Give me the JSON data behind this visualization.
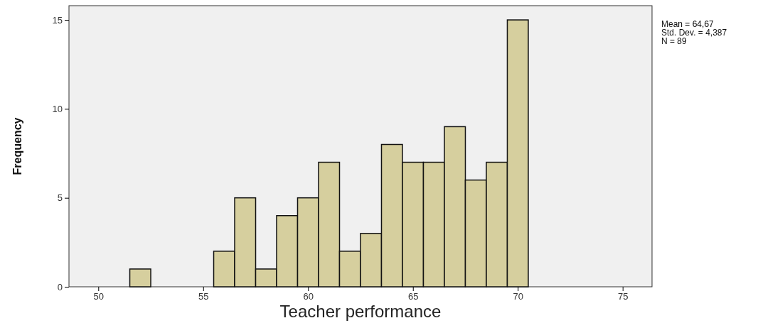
{
  "chart_data": {
    "type": "histogram",
    "xlabel": "Teacher performance",
    "ylabel": "Frequency",
    "bins": [
      51.5,
      52.5,
      53.5,
      54.5,
      55.5,
      56.5,
      57.5,
      58.5,
      59.5,
      60.5,
      61.5,
      62.5,
      63.5,
      64.5,
      65.5,
      66.5,
      67.5,
      68.5,
      69.5,
      70.5
    ],
    "values": [
      1,
      0,
      0,
      0,
      2,
      5,
      1,
      4,
      5,
      7,
      2,
      3,
      8,
      7,
      7,
      9,
      6,
      7,
      15
    ],
    "color": "#d6cf9e",
    "xlim": [
      48.6,
      76.4
    ],
    "xticks": [
      50,
      55,
      60,
      65,
      70,
      75
    ],
    "ylim": [
      0,
      15.8
    ],
    "yticks": [
      0,
      5,
      10,
      15
    ],
    "annotations": [
      "Mean = 64,67",
      "Std. Dev. = 4,387",
      "N = 89"
    ]
  }
}
